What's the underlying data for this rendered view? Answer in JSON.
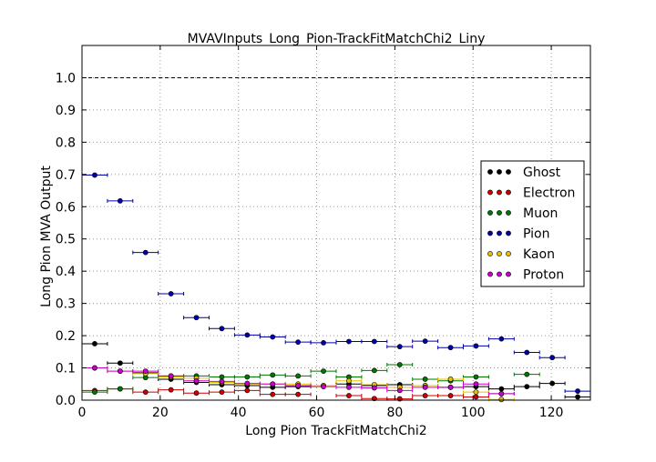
{
  "chart_data": {
    "type": "scatter",
    "title": "MVAVInputs_Long_Pion-TrackFitMatchChi2_Liny",
    "xlabel": "Long Pion TrackFitMatchChi2",
    "ylabel": "Long Pion MVA Output",
    "xlim": [
      0,
      130
    ],
    "ylim": [
      0,
      1.1
    ],
    "xticks": [
      0,
      20,
      40,
      60,
      80,
      100,
      120
    ],
    "yticks": [
      0.0,
      0.1,
      0.2,
      0.3,
      0.4,
      0.5,
      0.6,
      0.7,
      0.8,
      0.9,
      1.0
    ],
    "ytick_labels": [
      "0.0",
      "0.1",
      "0.2",
      "0.3",
      "0.4",
      "0.5",
      "0.6",
      "0.7",
      "0.8",
      "0.9",
      "1.0"
    ],
    "grid": true,
    "reference_line": 1.0,
    "legend_position": "right",
    "bin_width": 6.5,
    "x": [
      3.25,
      9.75,
      16.25,
      22.75,
      29.25,
      35.75,
      42.25,
      48.75,
      55.25,
      61.75,
      68.25,
      74.75,
      81.25,
      87.75,
      94.25,
      100.75,
      107.25,
      113.75,
      120.25,
      126.75
    ],
    "series": [
      {
        "name": "Ghost",
        "color": "#000000",
        "y": [
          0.175,
          0.115,
          0.085,
          0.065,
          0.055,
          0.048,
          0.045,
          0.04,
          0.042,
          0.045,
          0.05,
          0.045,
          0.048,
          0.045,
          0.04,
          0.042,
          0.035,
          0.042,
          0.052,
          0.01
        ]
      },
      {
        "name": "Electron",
        "color": "#cc0000",
        "y": [
          0.03,
          0.035,
          0.025,
          0.032,
          0.022,
          0.025,
          0.03,
          0.018,
          0.018,
          null,
          0.014,
          0.005,
          0.004,
          0.014,
          0.014,
          0.01,
          null,
          null,
          null,
          null
        ]
      },
      {
        "name": "Muon",
        "color": "#007700",
        "y": [
          0.025,
          0.035,
          0.07,
          0.075,
          0.075,
          0.072,
          0.072,
          0.078,
          0.075,
          0.09,
          0.072,
          0.092,
          0.11,
          0.065,
          0.06,
          0.072,
          0.02,
          0.08,
          null,
          null
        ]
      },
      {
        "name": "Pion",
        "color": "#0000aa",
        "y": [
          0.698,
          0.618,
          0.458,
          0.33,
          0.256,
          0.222,
          0.202,
          0.196,
          0.18,
          0.178,
          0.182,
          0.182,
          0.166,
          0.183,
          0.163,
          0.168,
          0.19,
          0.148,
          0.132,
          0.028
        ]
      },
      {
        "name": "Kaon",
        "color": "#e6c200",
        "y": [
          0.1,
          0.09,
          0.082,
          0.072,
          0.068,
          0.055,
          0.05,
          0.05,
          0.05,
          0.045,
          0.06,
          0.048,
          0.04,
          0.045,
          0.065,
          0.025,
          0.002,
          null,
          null,
          null
        ]
      },
      {
        "name": "Proton",
        "color": "#cc00cc",
        "y": [
          0.1,
          0.09,
          0.09,
          0.075,
          0.06,
          0.058,
          0.052,
          0.05,
          0.045,
          0.042,
          0.04,
          0.038,
          0.03,
          0.04,
          0.04,
          0.05,
          0.02,
          null,
          null,
          null
        ]
      }
    ]
  }
}
